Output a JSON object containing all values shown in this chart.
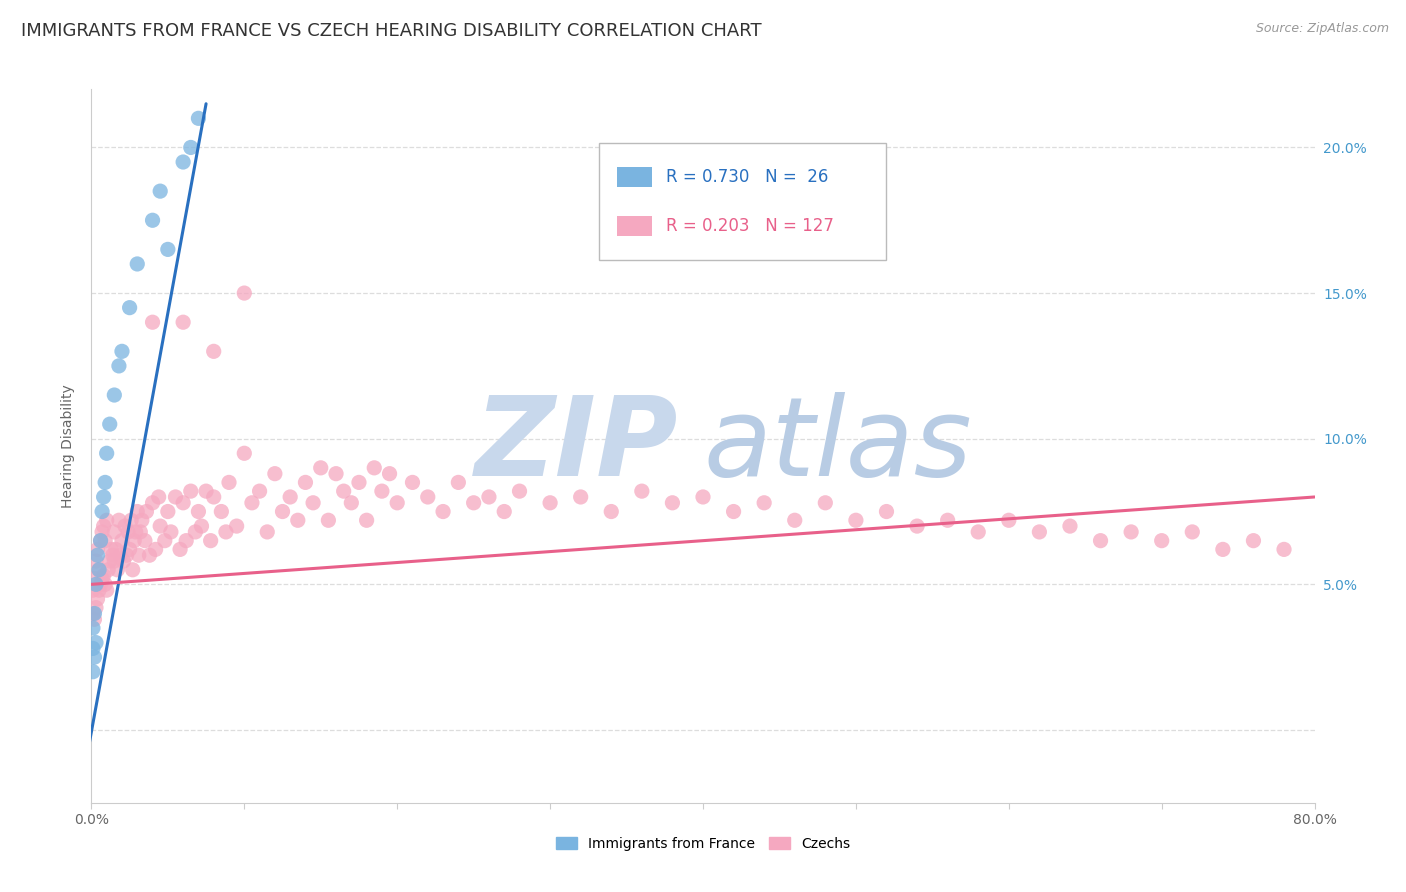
{
  "title": "IMMIGRANTS FROM FRANCE VS CZECH HEARING DISABILITY CORRELATION CHART",
  "source": "Source: ZipAtlas.com",
  "ylabel": "Hearing Disability",
  "legend1_label": "Immigrants from France",
  "legend2_label": "Czechs",
  "legend1_color": "#7ab4e0",
  "legend2_color": "#f5a8c0",
  "trendline1_color": "#2970c0",
  "trendline2_color": "#e8608a",
  "R1": 0.73,
  "N1": 26,
  "R2": 0.203,
  "N2": 127,
  "xlim": [
    0.0,
    0.8
  ],
  "ylim": [
    -0.025,
    0.22
  ],
  "background_color": "#ffffff",
  "grid_color": "#dddddd",
  "right_tick_color": "#4499cc",
  "title_fontsize": 13,
  "axis_fontsize": 10,
  "legend_fontsize": 12,
  "france_x": [
    0.001,
    0.001,
    0.001,
    0.002,
    0.002,
    0.003,
    0.003,
    0.004,
    0.005,
    0.006,
    0.007,
    0.008,
    0.009,
    0.01,
    0.012,
    0.015,
    0.018,
    0.02,
    0.025,
    0.03,
    0.04,
    0.045,
    0.05,
    0.06,
    0.065,
    0.07
  ],
  "france_y": [
    0.02,
    0.028,
    0.035,
    0.025,
    0.04,
    0.03,
    0.05,
    0.06,
    0.055,
    0.065,
    0.075,
    0.08,
    0.085,
    0.095,
    0.105,
    0.115,
    0.125,
    0.13,
    0.145,
    0.16,
    0.175,
    0.185,
    0.165,
    0.195,
    0.2,
    0.21
  ],
  "czech_x": [
    0.001,
    0.001,
    0.002,
    0.002,
    0.003,
    0.003,
    0.004,
    0.004,
    0.005,
    0.005,
    0.006,
    0.006,
    0.007,
    0.007,
    0.008,
    0.008,
    0.009,
    0.009,
    0.01,
    0.01,
    0.011,
    0.012,
    0.013,
    0.014,
    0.015,
    0.015,
    0.016,
    0.017,
    0.018,
    0.019,
    0.02,
    0.021,
    0.022,
    0.023,
    0.024,
    0.025,
    0.026,
    0.027,
    0.028,
    0.029,
    0.03,
    0.031,
    0.032,
    0.033,
    0.035,
    0.036,
    0.038,
    0.04,
    0.042,
    0.044,
    0.045,
    0.048,
    0.05,
    0.052,
    0.055,
    0.058,
    0.06,
    0.062,
    0.065,
    0.068,
    0.07,
    0.072,
    0.075,
    0.078,
    0.08,
    0.085,
    0.088,
    0.09,
    0.095,
    0.1,
    0.105,
    0.11,
    0.115,
    0.12,
    0.125,
    0.13,
    0.135,
    0.14,
    0.145,
    0.15,
    0.155,
    0.16,
    0.165,
    0.17,
    0.175,
    0.18,
    0.185,
    0.19,
    0.195,
    0.2,
    0.21,
    0.22,
    0.23,
    0.24,
    0.25,
    0.26,
    0.27,
    0.28,
    0.3,
    0.32,
    0.34,
    0.36,
    0.38,
    0.4,
    0.42,
    0.44,
    0.46,
    0.48,
    0.5,
    0.52,
    0.54,
    0.56,
    0.58,
    0.6,
    0.62,
    0.64,
    0.66,
    0.68,
    0.7,
    0.72,
    0.74,
    0.76,
    0.78,
    0.04,
    0.06,
    0.08,
    0.1
  ],
  "czech_y": [
    0.04,
    0.048,
    0.038,
    0.052,
    0.042,
    0.058,
    0.045,
    0.062,
    0.048,
    0.055,
    0.05,
    0.065,
    0.052,
    0.068,
    0.053,
    0.07,
    0.05,
    0.065,
    0.048,
    0.072,
    0.055,
    0.058,
    0.062,
    0.06,
    0.058,
    0.068,
    0.062,
    0.055,
    0.072,
    0.06,
    0.065,
    0.058,
    0.07,
    0.06,
    0.068,
    0.062,
    0.072,
    0.055,
    0.065,
    0.068,
    0.075,
    0.06,
    0.068,
    0.072,
    0.065,
    0.075,
    0.06,
    0.078,
    0.062,
    0.08,
    0.07,
    0.065,
    0.075,
    0.068,
    0.08,
    0.062,
    0.078,
    0.065,
    0.082,
    0.068,
    0.075,
    0.07,
    0.082,
    0.065,
    0.08,
    0.075,
    0.068,
    0.085,
    0.07,
    0.095,
    0.078,
    0.082,
    0.068,
    0.088,
    0.075,
    0.08,
    0.072,
    0.085,
    0.078,
    0.09,
    0.072,
    0.088,
    0.082,
    0.078,
    0.085,
    0.072,
    0.09,
    0.082,
    0.088,
    0.078,
    0.085,
    0.08,
    0.075,
    0.085,
    0.078,
    0.08,
    0.075,
    0.082,
    0.078,
    0.08,
    0.075,
    0.082,
    0.078,
    0.08,
    0.075,
    0.078,
    0.072,
    0.078,
    0.072,
    0.075,
    0.07,
    0.072,
    0.068,
    0.072,
    0.068,
    0.07,
    0.065,
    0.068,
    0.065,
    0.068,
    0.062,
    0.065,
    0.062,
    0.14,
    0.14,
    0.13,
    0.15
  ],
  "france_trendline_x": [
    -0.005,
    0.075
  ],
  "france_trendline_y": [
    -0.015,
    0.215
  ],
  "czech_trendline_x": [
    0.0,
    0.8
  ],
  "czech_trendline_y": [
    0.05,
    0.08
  ]
}
